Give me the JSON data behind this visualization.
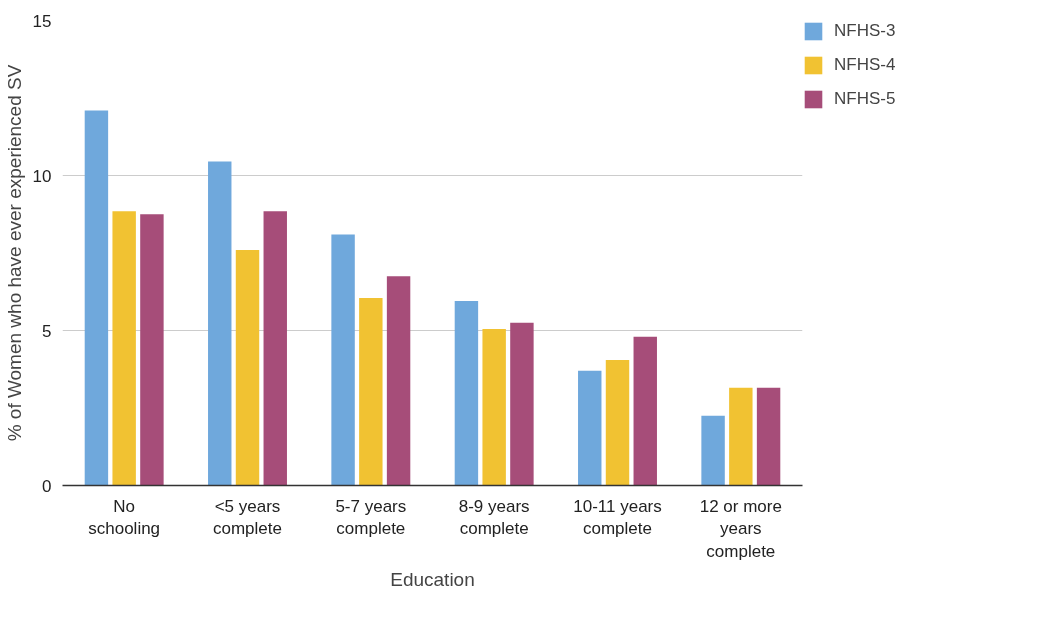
{
  "chart_data": {
    "type": "bar",
    "xlabel": "Education",
    "ylabel": "% of Women who have ever experienced SV",
    "categories": [
      "No schooling",
      "<5 years complete",
      "5-7 years complete",
      "8-9 years complete",
      "10-11 years complete",
      "12 or more years complete"
    ],
    "series": [
      {
        "name": "NFHS-3",
        "color": "#6fa8dc",
        "values": [
          12.1,
          10.45,
          8.1,
          5.95,
          3.7,
          2.25
        ]
      },
      {
        "name": "NFHS-4",
        "color": "#f1c232",
        "values": [
          8.85,
          7.6,
          6.05,
          5.05,
          4.05,
          3.15
        ]
      },
      {
        "name": "NFHS-5",
        "color": "#a64d79",
        "values": [
          8.75,
          8.85,
          6.75,
          5.25,
          4.8,
          3.15
        ]
      }
    ],
    "ylim": [
      0,
      15
    ],
    "yticks": [
      0,
      5,
      10,
      15
    ],
    "grid": "y",
    "legend": "top right"
  }
}
